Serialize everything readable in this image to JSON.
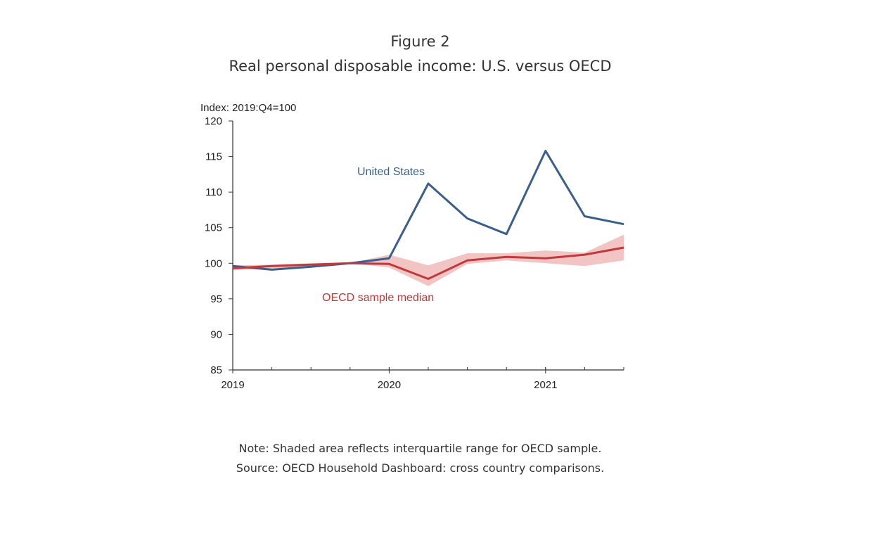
{
  "figure": {
    "title": "Figure 2",
    "subtitle": "Real personal disposable income: U.S. versus OECD",
    "notes": [
      "Note: Shaded area reflects interquartile range for OECD sample.",
      "Source: OECD Household Dashboard: cross country comparisons."
    ]
  },
  "chart_data": {
    "type": "line",
    "title": "Real personal disposable income: U.S. versus OECD",
    "ylabel": "Index: 2019:Q4=100",
    "xlabel": "",
    "ylim": [
      85,
      120
    ],
    "yticks": [
      85,
      90,
      95,
      100,
      105,
      110,
      115,
      120
    ],
    "xlim": [
      0,
      10
    ],
    "x_tick_labels": [
      {
        "x": 0,
        "label": "2019"
      },
      {
        "x": 4,
        "label": "2020"
      },
      {
        "x": 8,
        "label": "2021"
      }
    ],
    "x_minor_ticks": [
      0,
      1,
      2,
      3,
      4,
      5,
      6,
      7,
      8,
      9,
      10
    ],
    "x_quarters": [
      "2019:Q1",
      "2019:Q2",
      "2019:Q3",
      "2019:Q4",
      "2020:Q1",
      "2020:Q2",
      "2020:Q3",
      "2020:Q4",
      "2021:Q1",
      "2021:Q2",
      "2021:Q3"
    ],
    "grid": false,
    "series": [
      {
        "name": "United States",
        "color": "#3a5f8a",
        "values": [
          99.6,
          99.1,
          99.5,
          100.0,
          100.7,
          111.2,
          106.3,
          104.1,
          115.8,
          106.6,
          105.5
        ]
      },
      {
        "name": "OECD sample median",
        "color": "#c0393b",
        "values": [
          99.3,
          99.6,
          99.8,
          100.0,
          99.9,
          97.8,
          100.4,
          100.9,
          100.7,
          101.2,
          102.2
        ]
      }
    ],
    "band": {
      "color": "#f2c4c4",
      "lower": [
        99.0,
        99.3,
        99.5,
        100.0,
        99.4,
        96.8,
        99.9,
        100.4,
        100.0,
        99.6,
        100.4
      ],
      "upper": [
        99.7,
        99.8,
        100.0,
        100.0,
        101.2,
        99.7,
        101.4,
        101.4,
        101.8,
        101.5,
        104.0
      ]
    }
  }
}
